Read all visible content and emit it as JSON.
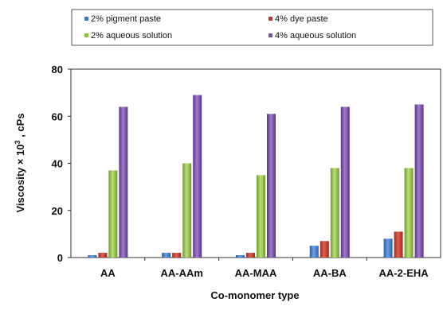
{
  "chart_data": {
    "type": "bar",
    "categories": [
      "AA",
      "AA-AAm",
      "AA-MAA",
      "AA-BA",
      "AA-2-EHA"
    ],
    "series": [
      {
        "name": "2% pigment paste",
        "values": [
          1,
          2,
          1,
          5,
          8
        ]
      },
      {
        "name": "4%  dye paste",
        "values": [
          2,
          2,
          2,
          7,
          11
        ]
      },
      {
        "name": "2% aqueous solution",
        "values": [
          37,
          40,
          35,
          38,
          38
        ]
      },
      {
        "name": "4% aqueous solution",
        "values": [
          64,
          69,
          61,
          64,
          65
        ]
      }
    ],
    "xlabel": "Co-monomer type",
    "ylabel_main": "Viscosity × 10",
    "ylabel_sup": "3",
    "ylabel_unit": " , cPs",
    "ylim": [
      0,
      80
    ],
    "yticks": [
      "0",
      "20",
      "40",
      "60",
      "80"
    ],
    "grid": false,
    "legend_position": "top",
    "colors": [
      "#3c78c8",
      "#c0392b",
      "#8fbe44",
      "#7a4fa6"
    ]
  }
}
